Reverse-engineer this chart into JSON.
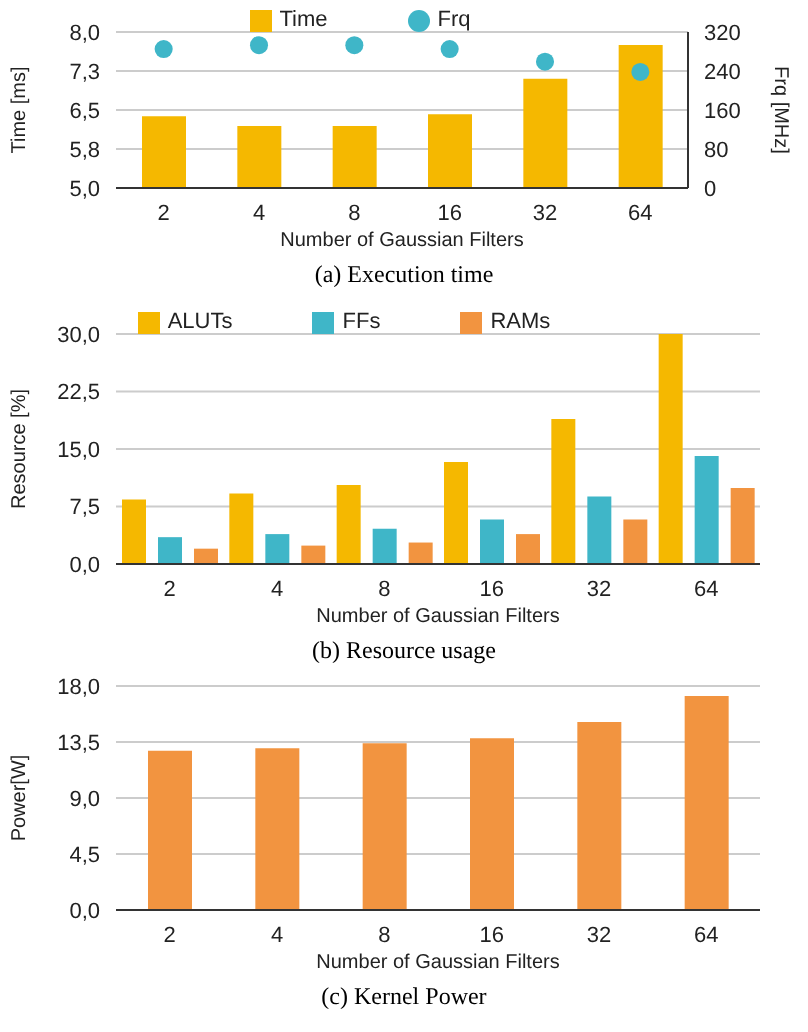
{
  "chart_data": [
    {
      "type": "bar",
      "title": "(a) Execution time",
      "xlabel": "Number of Gaussian Filters",
      "ylabel": "Time [ms]",
      "y2label": "Frq [MHz]",
      "categories": [
        "2",
        "4",
        "8",
        "16",
        "32",
        "64"
      ],
      "series": [
        {
          "name": "Time",
          "color": "#f5b800",
          "values": [
            6.38,
            6.19,
            6.19,
            6.42,
            7.1,
            7.75
          ]
        },
        {
          "name": "Frq",
          "type": "scatter",
          "axis": "y2",
          "color": "#3fb6c8",
          "values": [
            285,
            293,
            293,
            285,
            259,
            238
          ]
        }
      ],
      "ylim": [
        5,
        8
      ],
      "yticks": [
        {
          "value": 5,
          "label": "5,0"
        },
        {
          "value": 5.75,
          "label": "5,8"
        },
        {
          "value": 6.5,
          "label": "6,5"
        },
        {
          "value": 7.25,
          "label": "7,3"
        },
        {
          "value": 8,
          "label": "8,0"
        }
      ],
      "y2lim": [
        0,
        320
      ],
      "y2ticks": [
        0,
        80,
        160,
        240,
        320
      ],
      "grid": "y",
      "legend": "top",
      "marker": "circle"
    },
    {
      "type": "bar",
      "title": "(b) Resource usage",
      "xlabel": "Number of Gaussian Filters",
      "ylabel": "Resource [%]",
      "categories": [
        "2",
        "4",
        "8",
        "16",
        "32",
        "64"
      ],
      "series": [
        {
          "name": "ALUTs",
          "color": "#f5b800",
          "values": [
            8.4,
            9.2,
            10.3,
            13.3,
            18.9,
            30.0
          ]
        },
        {
          "name": "FFs",
          "color": "#3fb6c8",
          "values": [
            3.5,
            3.9,
            4.6,
            5.8,
            8.8,
            14.1
          ]
        },
        {
          "name": "RAMs",
          "color": "#f29440",
          "values": [
            2.0,
            2.4,
            2.8,
            3.9,
            5.8,
            9.9
          ]
        }
      ],
      "ylim": [
        0,
        30
      ],
      "yticks": [
        {
          "value": 0,
          "label": "0,0"
        },
        {
          "value": 7.5,
          "label": "7,5"
        },
        {
          "value": 15,
          "label": "15,0"
        },
        {
          "value": 22.5,
          "label": "22,5"
        },
        {
          "value": 30,
          "label": "30,0"
        }
      ],
      "grid": "y",
      "legend": "top"
    },
    {
      "type": "bar",
      "title": "(c) Kernel Power",
      "xlabel": "Number of Gaussian Filters",
      "ylabel": "Power[W]",
      "categories": [
        "2",
        "4",
        "8",
        "16",
        "32",
        "64"
      ],
      "series": [
        {
          "color": "#f29440",
          "values": [
            12.8,
            13.0,
            13.4,
            13.8,
            15.1,
            17.2
          ]
        }
      ],
      "ylim": [
        0,
        18
      ],
      "yticks": [
        {
          "value": 0,
          "label": "0,0"
        },
        {
          "value": 4.5,
          "label": "4,5"
        },
        {
          "value": 9,
          "label": "9,0"
        },
        {
          "value": 13.5,
          "label": "13,5"
        },
        {
          "value": 18,
          "label": "18,0"
        }
      ],
      "grid": "y"
    }
  ]
}
